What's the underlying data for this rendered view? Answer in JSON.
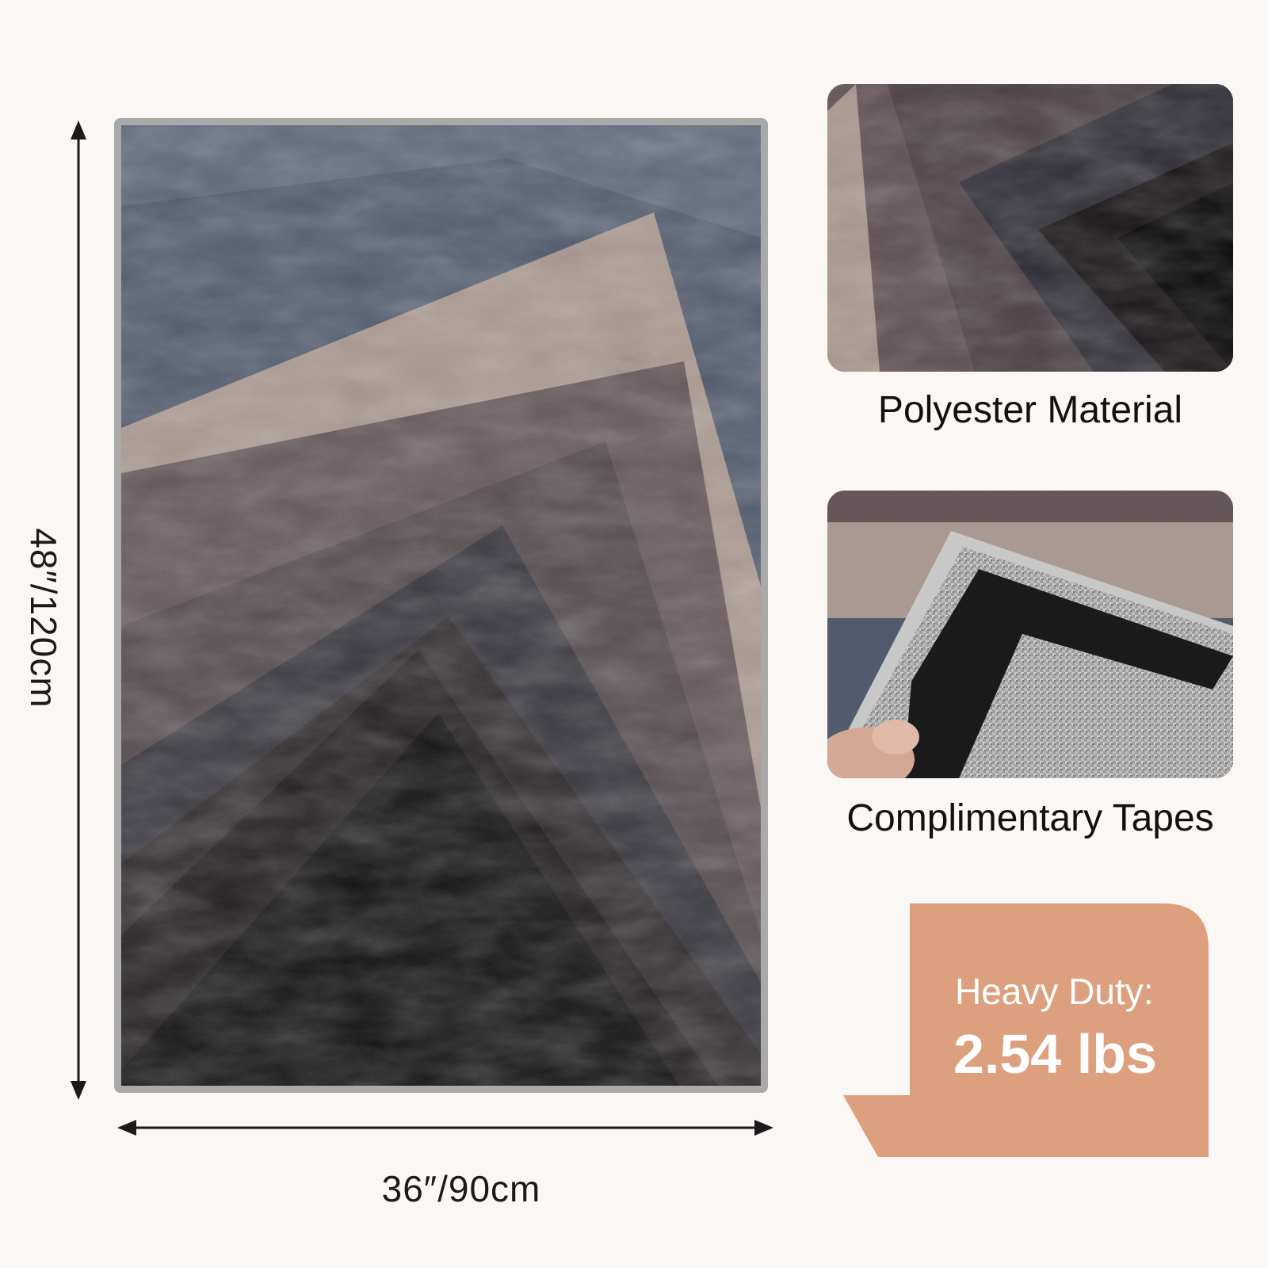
{
  "dimensions": {
    "height_label": "48″/120cm",
    "width_label": "36″/90cm"
  },
  "features": [
    {
      "label": "Polyester Material"
    },
    {
      "label": "Complimentary Tapes"
    }
  ],
  "badge": {
    "line1": "Heavy Duty:",
    "line2": "2.54 lbs"
  },
  "colors": {
    "background": "#fbf7f4",
    "badge": "#dda07e",
    "rug_blue": "#4a5467",
    "rug_taupe": "#a8968c",
    "rug_mauve": "#5a4c4f",
    "rug_black": "#050405"
  },
  "images": {
    "main": "geometric-rug",
    "detail_1": "rug-texture-closeup",
    "detail_2": "rug-backing-with-tape"
  }
}
